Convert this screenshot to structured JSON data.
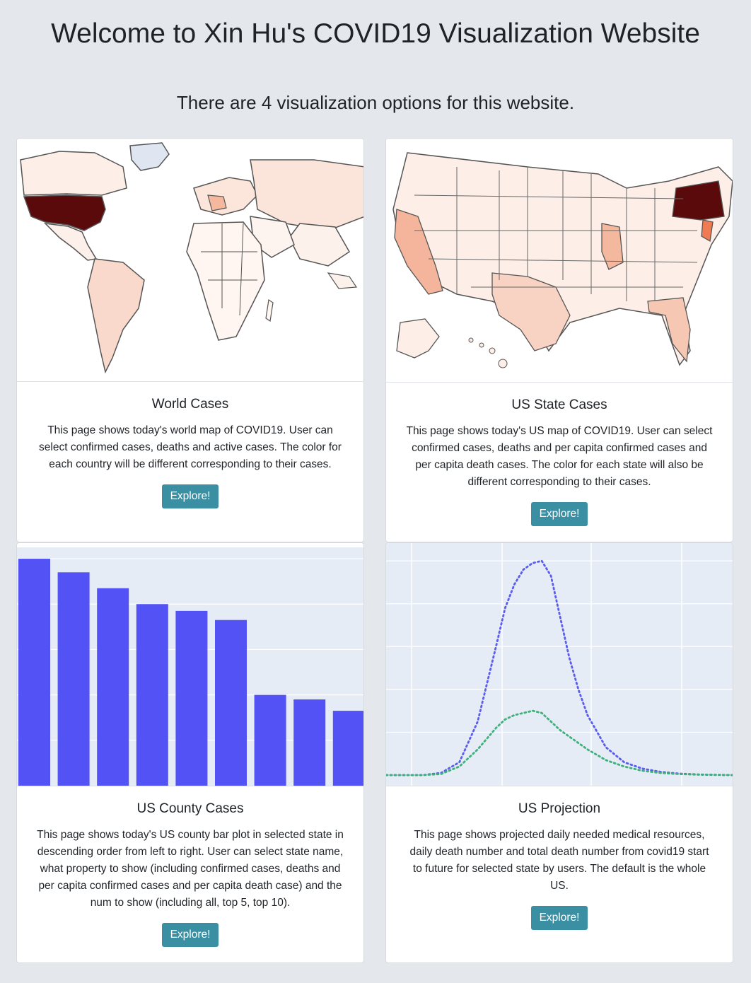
{
  "header": {
    "title": "Welcome to Xin Hu's COVID19 Visualization Website",
    "subtitle": "There are 4 visualization options for this website."
  },
  "cards": [
    {
      "title": "World Cases",
      "description": "This page shows today's world map of COVID19. User can select confirmed cases, deaths and active cases. The color for each country will be different corresponding to their cases.",
      "button": "Explore!"
    },
    {
      "title": "US State Cases",
      "description": "This page shows today's US map of COVID19. User can select confirmed cases, deaths and per capita confirmed cases and per capita death cases. The color for each state will also be different corresponding to their cases.",
      "button": "Explore!"
    },
    {
      "title": "US County Cases",
      "description": "This page shows today's US county bar plot in selected state in descending order from left to right. User can select state name, what property to show (including confirmed cases, deaths and per capita confirmed cases and per capita death case) and the num to show (including all, top 5, top 10).",
      "button": "Explore!"
    },
    {
      "title": "US Projection",
      "description": "This page shows projected daily needed medical resources, daily death number and total death number from covid19 start to future for selected state by users. The default is the whole US.",
      "button": "Explore!"
    }
  ],
  "colors": {
    "button_bg": "#3a8fa3",
    "page_bg": "#e4e8ed",
    "bar_color": "#5352f4",
    "line_blue": "#5a5cf0",
    "line_green": "#3fb07a",
    "map_dark": "#5a0a0a"
  },
  "chart_data": [
    {
      "type": "bar",
      "values": [
        100,
        94,
        87,
        80,
        77,
        73,
        40,
        38,
        33
      ],
      "ylim": [
        0,
        105
      ],
      "grid": true
    },
    {
      "type": "line",
      "x": [
        0,
        4,
        8,
        12,
        16,
        20,
        24,
        26,
        28,
        30,
        32,
        34,
        36,
        38,
        40,
        42,
        44,
        48,
        52,
        56,
        60,
        64,
        68,
        72,
        76
      ],
      "series": [
        {
          "values": [
            0,
            0,
            0,
            1,
            6,
            25,
            60,
            78,
            89,
            96,
            99,
            100,
            93,
            74,
            55,
            40,
            28,
            13,
            6,
            3,
            1.5,
            0.7,
            0.3,
            0.1,
            0
          ]
        },
        {
          "values": [
            0,
            0,
            0,
            0.5,
            4,
            12,
            22,
            26,
            28,
            29,
            30,
            29,
            25,
            21,
            18,
            15,
            12,
            7,
            4,
            2,
            1,
            0.5,
            0.2,
            0.1,
            0
          ]
        }
      ],
      "ylim": [
        0,
        105
      ],
      "grid": true
    }
  ]
}
